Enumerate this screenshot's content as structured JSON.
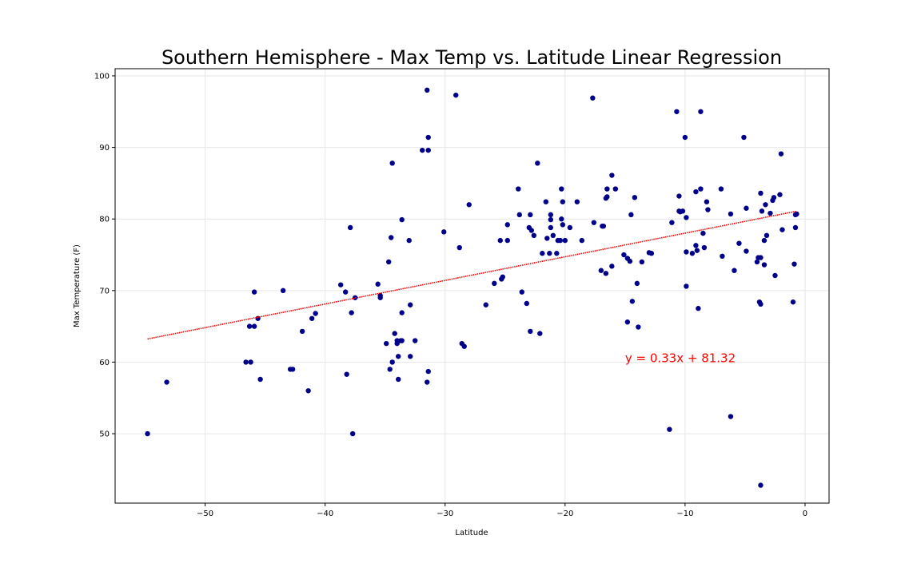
{
  "chart_data": {
    "type": "scatter",
    "title": "Southern Hemisphere - Max Temp vs. Latitude Linear Regression",
    "xlabel": "Latitude",
    "ylabel": "Max Temperature (F)",
    "xlim": [
      -57.5,
      2.0
    ],
    "ylim": [
      40.3,
      101.0
    ],
    "xticks": [
      -50,
      -40,
      -30,
      -20,
      -10,
      0
    ],
    "yticks": [
      50,
      60,
      70,
      80,
      90,
      100
    ],
    "grid": true,
    "point_color": "#00008b",
    "line_color": "#ff0000",
    "annotation": {
      "text": "y = 0.33x + 81.32",
      "x": -15,
      "y": 60,
      "color": "#ff0000"
    },
    "regression": {
      "slope": 0.33,
      "intercept": 81.32,
      "x_range": [
        -54.8,
        -0.7
      ]
    },
    "series": [
      {
        "points": [
          [
            -54.8,
            50.0
          ],
          [
            -53.2,
            57.2
          ],
          [
            -46.6,
            60.0
          ],
          [
            -46.3,
            65.0
          ],
          [
            -46.2,
            60.0
          ],
          [
            -45.9,
            69.8
          ],
          [
            -45.9,
            65.0
          ],
          [
            -45.6,
            66.1
          ],
          [
            -45.4,
            57.6
          ],
          [
            -43.5,
            70.0
          ],
          [
            -42.9,
            59.0
          ],
          [
            -42.7,
            59.0
          ],
          [
            -41.9,
            64.3
          ],
          [
            -41.4,
            56.0
          ],
          [
            -41.1,
            66.1
          ],
          [
            -40.8,
            66.8
          ],
          [
            -38.7,
            70.8
          ],
          [
            -38.3,
            69.8
          ],
          [
            -38.2,
            58.3
          ],
          [
            -37.9,
            78.8
          ],
          [
            -37.8,
            66.9
          ],
          [
            -37.7,
            50.0
          ],
          [
            -37.5,
            69.0
          ],
          [
            -35.6,
            70.9
          ],
          [
            -35.4,
            69.3
          ],
          [
            -35.4,
            69.0
          ],
          [
            -34.9,
            62.6
          ],
          [
            -34.7,
            74.0
          ],
          [
            -34.6,
            59.0
          ],
          [
            -34.5,
            77.4
          ],
          [
            -34.4,
            87.8
          ],
          [
            -34.4,
            60.0
          ],
          [
            -34.2,
            64.0
          ],
          [
            -34.0,
            62.6
          ],
          [
            -34.0,
            63.0
          ],
          [
            -33.9,
            57.6
          ],
          [
            -33.9,
            60.8
          ],
          [
            -33.7,
            63.0
          ],
          [
            -33.6,
            66.9
          ],
          [
            -33.6,
            63.0
          ],
          [
            -33.6,
            79.9
          ],
          [
            -33.0,
            77.0
          ],
          [
            -32.9,
            68.0
          ],
          [
            -32.9,
            60.8
          ],
          [
            -32.5,
            63.0
          ],
          [
            -31.9,
            89.6
          ],
          [
            -31.5,
            98.0
          ],
          [
            -31.4,
            91.4
          ],
          [
            -31.4,
            89.6
          ],
          [
            -31.5,
            57.2
          ],
          [
            -31.4,
            58.7
          ],
          [
            -30.1,
            78.2
          ],
          [
            -29.1,
            97.3
          ],
          [
            -28.8,
            76.0
          ],
          [
            -28.6,
            62.6
          ],
          [
            -28.4,
            62.2
          ],
          [
            -28.0,
            82.0
          ],
          [
            -26.6,
            68.0
          ],
          [
            -25.9,
            71.0
          ],
          [
            -25.4,
            77.0
          ],
          [
            -25.3,
            71.6
          ],
          [
            -25.2,
            71.9
          ],
          [
            -24.8,
            77.0
          ],
          [
            -24.8,
            79.2
          ],
          [
            -23.9,
            84.2
          ],
          [
            -23.8,
            80.6
          ],
          [
            -23.6,
            69.8
          ],
          [
            -23.2,
            68.2
          ],
          [
            -23.0,
            78.8
          ],
          [
            -22.9,
            80.6
          ],
          [
            -22.9,
            64.3
          ],
          [
            -22.8,
            78.4
          ],
          [
            -22.6,
            77.7
          ],
          [
            -22.3,
            87.8
          ],
          [
            -22.1,
            64.0
          ],
          [
            -21.9,
            75.2
          ],
          [
            -21.6,
            82.4
          ],
          [
            -21.5,
            77.3
          ],
          [
            -21.3,
            75.2
          ],
          [
            -21.2,
            79.9
          ],
          [
            -21.2,
            80.6
          ],
          [
            -21.2,
            78.8
          ],
          [
            -21.0,
            77.7
          ],
          [
            -20.7,
            75.2
          ],
          [
            -20.6,
            77.0
          ],
          [
            -20.4,
            77.0
          ],
          [
            -20.3,
            84.2
          ],
          [
            -20.3,
            80.0
          ],
          [
            -20.2,
            82.4
          ],
          [
            -20.2,
            79.2
          ],
          [
            -20.0,
            77.0
          ],
          [
            -19.6,
            78.8
          ],
          [
            -19.0,
            82.4
          ],
          [
            -18.6,
            77.0
          ],
          [
            -17.7,
            96.9
          ],
          [
            -17.6,
            79.5
          ],
          [
            -17.0,
            72.8
          ],
          [
            -16.9,
            79.0
          ],
          [
            -16.8,
            79.0
          ],
          [
            -16.6,
            72.4
          ],
          [
            -16.6,
            82.9
          ],
          [
            -16.5,
            84.2
          ],
          [
            -16.5,
            83.1
          ],
          [
            -16.1,
            86.1
          ],
          [
            -16.1,
            73.4
          ],
          [
            -15.8,
            84.2
          ],
          [
            -15.1,
            75.0
          ],
          [
            -14.8,
            74.5
          ],
          [
            -14.8,
            65.6
          ],
          [
            -14.6,
            74.1
          ],
          [
            -14.5,
            80.6
          ],
          [
            -14.4,
            68.5
          ],
          [
            -14.2,
            83.0
          ],
          [
            -14.0,
            71.0
          ],
          [
            -13.9,
            64.9
          ],
          [
            -13.6,
            74.0
          ],
          [
            -13.0,
            75.3
          ],
          [
            -12.8,
            75.2
          ],
          [
            -11.3,
            50.6
          ],
          [
            -11.1,
            79.5
          ],
          [
            -10.7,
            95.0
          ],
          [
            -10.5,
            83.2
          ],
          [
            -10.5,
            81.1
          ],
          [
            -10.4,
            81.0
          ],
          [
            -10.2,
            81.1
          ],
          [
            -10.0,
            91.4
          ],
          [
            -9.9,
            80.2
          ],
          [
            -9.9,
            70.6
          ],
          [
            -9.9,
            75.4
          ],
          [
            -9.4,
            75.2
          ],
          [
            -9.1,
            76.3
          ],
          [
            -9.1,
            83.8
          ],
          [
            -9.0,
            75.6
          ],
          [
            -8.9,
            67.5
          ],
          [
            -8.7,
            95.0
          ],
          [
            -8.7,
            84.2
          ],
          [
            -8.5,
            78.0
          ],
          [
            -8.4,
            76.0
          ],
          [
            -8.2,
            82.4
          ],
          [
            -8.1,
            81.3
          ],
          [
            -7.0,
            84.2
          ],
          [
            -6.9,
            74.8
          ],
          [
            -6.2,
            80.7
          ],
          [
            -6.2,
            52.4
          ],
          [
            -5.9,
            72.8
          ],
          [
            -5.5,
            76.6
          ],
          [
            -5.1,
            91.4
          ],
          [
            -4.9,
            75.5
          ],
          [
            -4.9,
            81.5
          ],
          [
            -4.0,
            74.0
          ],
          [
            -3.9,
            74.6
          ],
          [
            -3.8,
            68.4
          ],
          [
            -3.7,
            74.6
          ],
          [
            -3.7,
            42.8
          ],
          [
            -3.7,
            68.1
          ],
          [
            -3.7,
            83.6
          ],
          [
            -3.6,
            81.1
          ],
          [
            -3.4,
            73.6
          ],
          [
            -3.4,
            77.0
          ],
          [
            -3.3,
            82.0
          ],
          [
            -3.2,
            77.7
          ],
          [
            -2.9,
            80.8
          ],
          [
            -2.7,
            82.6
          ],
          [
            -2.6,
            83.0
          ],
          [
            -2.5,
            72.1
          ],
          [
            -2.1,
            83.4
          ],
          [
            -2.0,
            89.1
          ],
          [
            -1.9,
            78.5
          ],
          [
            -1.0,
            68.4
          ],
          [
            -0.9,
            73.7
          ],
          [
            -0.8,
            80.6
          ],
          [
            -0.8,
            78.8
          ],
          [
            -0.7,
            80.7
          ]
        ]
      }
    ]
  }
}
